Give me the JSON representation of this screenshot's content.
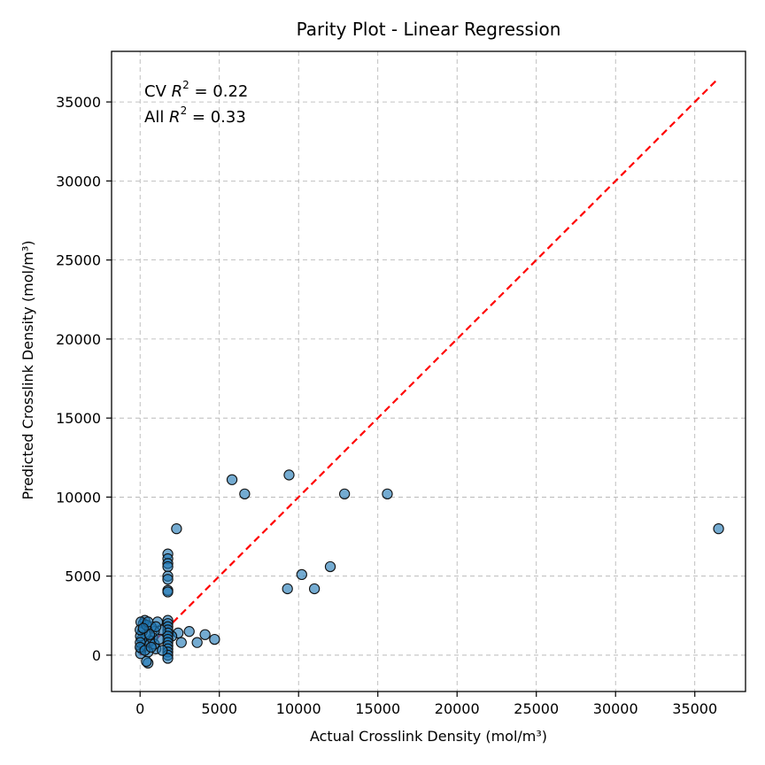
{
  "chart_data": {
    "type": "scatter",
    "title": "Parity Plot - Linear Regression",
    "xlabel": "Actual Crosslink Density (mol/m³)",
    "ylabel": "Predicted Crosslink Density (mol/m³)",
    "xlim": [
      -1800,
      38200
    ],
    "ylim": [
      -2300,
      38200
    ],
    "xticks": [
      0,
      5000,
      10000,
      15000,
      20000,
      25000,
      30000,
      35000
    ],
    "yticks": [
      0,
      5000,
      10000,
      15000,
      20000,
      25000,
      30000,
      35000
    ],
    "grid": true,
    "annotations": [
      {
        "prefix": "CV ",
        "r_label": "R",
        "superscript": "2",
        "suffix": " = 0.22"
      },
      {
        "prefix": "All ",
        "r_label": "R",
        "superscript": "2",
        "suffix": " = 0.33"
      }
    ],
    "point_color": "#1f77b4",
    "reference_line": {
      "x": [
        0,
        36500
      ],
      "y": [
        0,
        36500
      ],
      "color": "#ff0000",
      "style": "dashed"
    },
    "points": [
      [
        36500,
        8000
      ],
      [
        15600,
        10200
      ],
      [
        12900,
        10200
      ],
      [
        9400,
        11400
      ],
      [
        6600,
        10200
      ],
      [
        5800,
        11100
      ],
      [
        12000,
        5600
      ],
      [
        10200,
        5100
      ],
      [
        11000,
        4200
      ],
      [
        9300,
        4200
      ],
      [
        4700,
        1000
      ],
      [
        4100,
        1300
      ],
      [
        3600,
        800
      ],
      [
        3100,
        1500
      ],
      [
        2600,
        800
      ],
      [
        2400,
        1400
      ],
      [
        2300,
        8000
      ],
      [
        2000,
        1200
      ],
      [
        1750,
        6400
      ],
      [
        1750,
        6100
      ],
      [
        1750,
        5800
      ],
      [
        1750,
        5600
      ],
      [
        1750,
        5000
      ],
      [
        1750,
        4800
      ],
      [
        1750,
        4100
      ],
      [
        1750,
        4000
      ],
      [
        1750,
        2200
      ],
      [
        1750,
        2000
      ],
      [
        1750,
        1800
      ],
      [
        1750,
        1600
      ],
      [
        1750,
        1400
      ],
      [
        1750,
        1200
      ],
      [
        1750,
        1000
      ],
      [
        1750,
        800
      ],
      [
        1750,
        600
      ],
      [
        1750,
        400
      ],
      [
        1750,
        200
      ],
      [
        1750,
        0
      ],
      [
        1750,
        -200
      ],
      [
        1300,
        1600
      ],
      [
        1100,
        2100
      ],
      [
        1000,
        400
      ],
      [
        900,
        1500
      ],
      [
        800,
        1100
      ],
      [
        700,
        1800
      ],
      [
        600,
        900
      ],
      [
        500,
        200
      ],
      [
        500,
        -500
      ],
      [
        400,
        -400
      ],
      [
        350,
        1300
      ],
      [
        300,
        2200
      ],
      [
        250,
        700
      ],
      [
        200,
        2000
      ],
      [
        150,
        1500
      ],
      [
        100,
        1000
      ],
      [
        80,
        400
      ],
      [
        50,
        2100
      ],
      [
        30,
        100
      ],
      [
        20,
        1200
      ],
      [
        10,
        800
      ],
      [
        0,
        1600
      ],
      [
        0,
        500
      ],
      [
        400,
        1900
      ],
      [
        600,
        1300
      ],
      [
        900,
        700
      ],
      [
        1200,
        1000
      ],
      [
        300,
        300
      ],
      [
        700,
        500
      ],
      [
        500,
        2100
      ],
      [
        200,
        1700
      ],
      [
        1000,
        1800
      ],
      [
        1400,
        300
      ]
    ]
  }
}
